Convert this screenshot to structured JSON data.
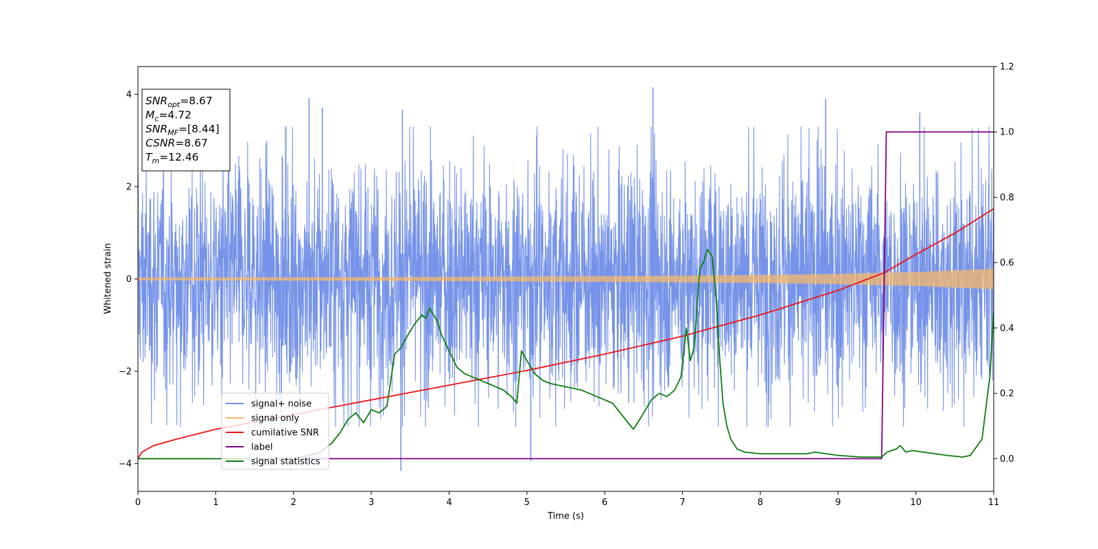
{
  "chart_data": {
    "type": "line",
    "xlabel": "Time (s)",
    "ylabel": "Whitened strain",
    "xlim": [
      0,
      11
    ],
    "ylim": [
      -4.6,
      4.6
    ],
    "y2lim": [
      -0.1,
      1.2
    ],
    "x_ticks": [
      "0",
      "1",
      "2",
      "3",
      "4",
      "5",
      "6",
      "7",
      "8",
      "9",
      "10",
      "11"
    ],
    "y_ticks": [
      "−4",
      "−2",
      "0",
      "2",
      "4"
    ],
    "y2_ticks": [
      "0.0",
      "0.2",
      "0.4",
      "0.6",
      "0.8",
      "1.0",
      "1.2"
    ],
    "grid": false,
    "legend_position": "lower-left",
    "stats_box": [
      {
        "sym": "SNR",
        "sub": "opt",
        "value": "=8.67"
      },
      {
        "sym": "M",
        "sub": "c",
        "value": "=4.72"
      },
      {
        "sym": "SNR",
        "sub": "MF",
        "value": "=[8.44]"
      },
      {
        "sym": "CSNR",
        "sub": "",
        "value": "=8.67"
      },
      {
        "sym": "T",
        "sub": "m",
        "value": "=12.46"
      }
    ],
    "series": [
      {
        "name": "signal+ noise",
        "axis": "left",
        "color": "#6f8de8",
        "note": "noise band",
        "amplitude_envelope": {
          "x": [
            0,
            11
          ],
          "y_min": [
            -2.6,
            -2.6
          ],
          "y_max": [
            2.6,
            2.6
          ]
        },
        "spike_peaks": {
          "x": [
            2.2,
            2.37,
            3.4,
            6.62,
            8.84,
            10.05,
            3.38,
            5.05
          ],
          "y": [
            3.92,
            3.71,
            3.66,
            4.15,
            3.9,
            3.6,
            -4.16,
            -3.95
          ]
        }
      },
      {
        "name": "signal only",
        "axis": "left",
        "color": "#f5b86a",
        "amplitude_envelope": {
          "x": [
            0,
            2,
            4,
            6,
            8,
            9,
            10,
            11
          ],
          "y": [
            0.03,
            0.035,
            0.045,
            0.06,
            0.085,
            0.11,
            0.15,
            0.22
          ]
        }
      },
      {
        "name": "cumilative SNR",
        "axis": "right",
        "color": "#ee1111",
        "x": [
          0,
          0.05,
          0.2,
          0.5,
          1,
          2,
          3,
          4,
          5,
          6,
          7,
          8,
          9,
          9.6,
          10,
          10.5,
          11
        ],
        "y": [
          0.0,
          0.02,
          0.04,
          0.06,
          0.09,
          0.135,
          0.18,
          0.225,
          0.27,
          0.32,
          0.375,
          0.44,
          0.515,
          0.57,
          0.625,
          0.69,
          0.765
        ]
      },
      {
        "name": "label",
        "axis": "right",
        "color": "#800080",
        "x": [
          0,
          9.56,
          9.62,
          11
        ],
        "y": [
          0,
          0,
          1,
          1
        ]
      },
      {
        "name": "signal statistics",
        "axis": "right",
        "color": "#0a7d0a",
        "x": [
          0,
          0.5,
          1.0,
          1.5,
          2.0,
          2.2,
          2.35,
          2.5,
          2.6,
          2.7,
          2.8,
          2.9,
          3.0,
          3.1,
          3.2,
          3.3,
          3.38,
          3.45,
          3.55,
          3.65,
          3.7,
          3.75,
          3.85,
          3.9,
          4.0,
          4.1,
          4.2,
          4.3,
          4.4,
          4.5,
          4.6,
          4.7,
          4.8,
          4.87,
          4.93,
          5.0,
          5.05,
          5.1,
          5.2,
          5.3,
          5.5,
          5.7,
          5.8,
          5.9,
          6.0,
          6.1,
          6.2,
          6.3,
          6.37,
          6.45,
          6.55,
          6.6,
          6.7,
          6.8,
          6.9,
          6.98,
          7.05,
          7.1,
          7.15,
          7.22,
          7.27,
          7.32,
          7.38,
          7.43,
          7.48,
          7.52,
          7.57,
          7.62,
          7.7,
          7.8,
          8.0,
          8.3,
          8.6,
          8.7,
          9.0,
          9.3,
          9.56,
          9.63,
          9.75,
          9.8,
          9.87,
          9.95,
          10.1,
          10.4,
          10.6,
          10.7,
          10.85,
          10.95,
          11.0
        ],
        "y": [
          0.0,
          0.0,
          0.0,
          0.0,
          0.0,
          0.01,
          0.02,
          0.05,
          0.08,
          0.12,
          0.14,
          0.11,
          0.15,
          0.14,
          0.16,
          0.32,
          0.34,
          0.37,
          0.41,
          0.44,
          0.43,
          0.46,
          0.42,
          0.38,
          0.33,
          0.28,
          0.26,
          0.25,
          0.24,
          0.23,
          0.22,
          0.21,
          0.19,
          0.17,
          0.33,
          0.3,
          0.28,
          0.26,
          0.24,
          0.23,
          0.22,
          0.21,
          0.2,
          0.19,
          0.18,
          0.17,
          0.14,
          0.11,
          0.09,
          0.12,
          0.16,
          0.18,
          0.2,
          0.19,
          0.21,
          0.25,
          0.4,
          0.3,
          0.34,
          0.58,
          0.6,
          0.64,
          0.62,
          0.5,
          0.3,
          0.17,
          0.1,
          0.06,
          0.03,
          0.02,
          0.015,
          0.015,
          0.015,
          0.02,
          0.01,
          0.005,
          0.005,
          0.02,
          0.03,
          0.04,
          0.02,
          0.025,
          0.02,
          0.01,
          0.005,
          0.01,
          0.06,
          0.25,
          0.45
        ]
      }
    ]
  }
}
